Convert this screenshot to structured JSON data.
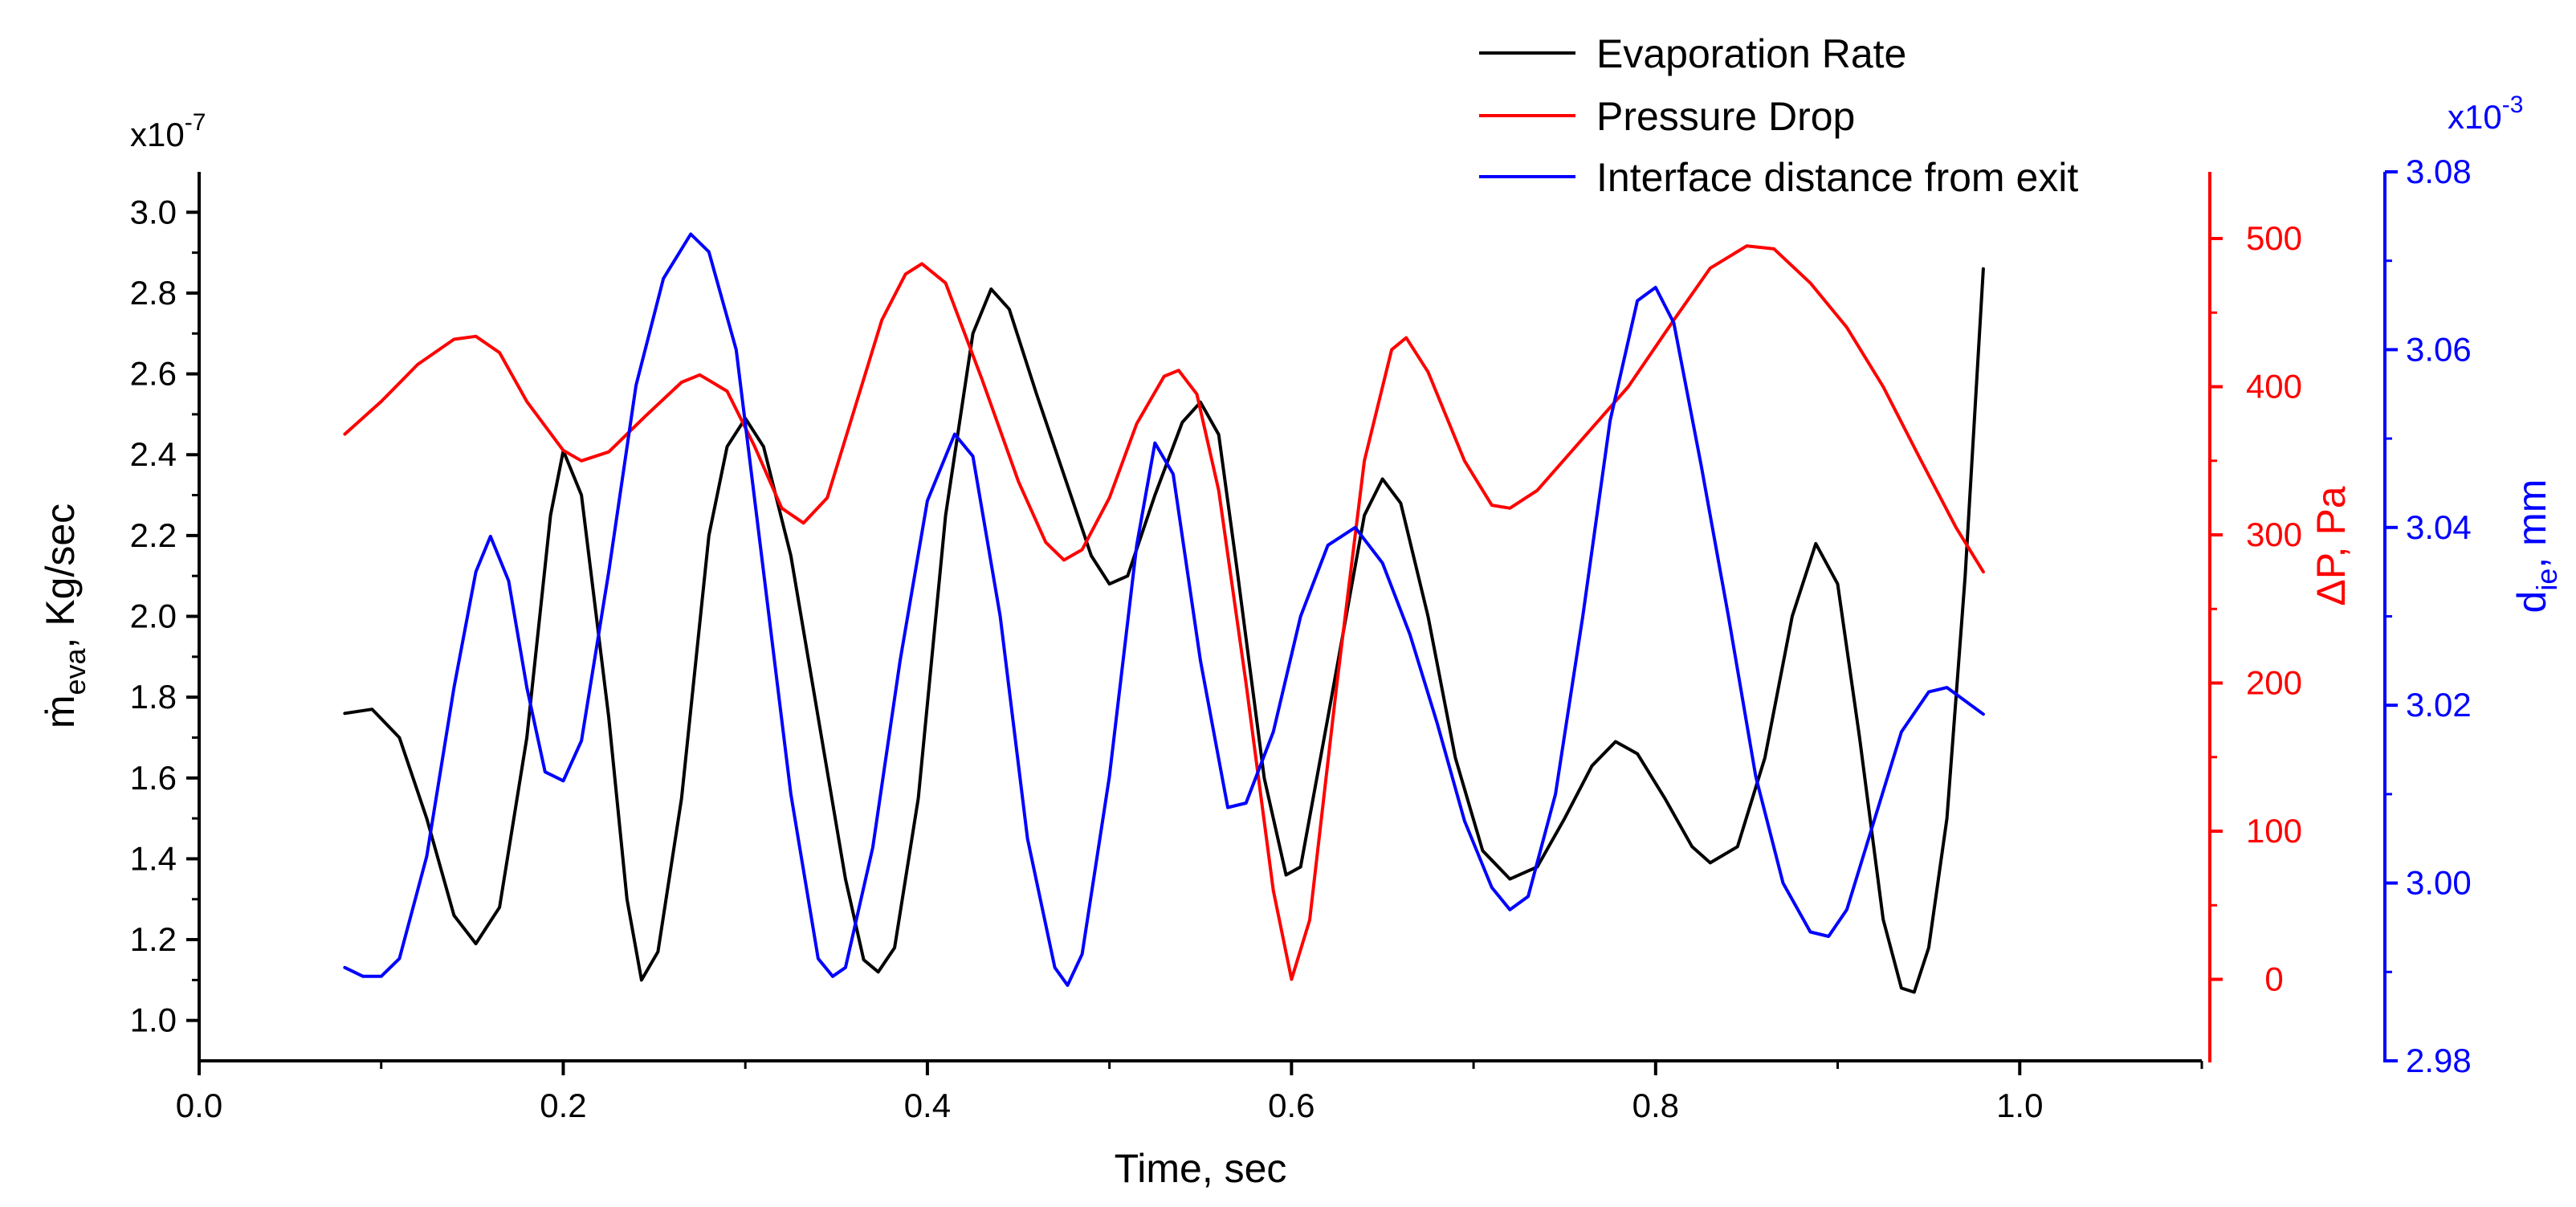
{
  "chart_data": {
    "type": "line",
    "title": "",
    "xlabel": "Time, sec",
    "xlim": [
      0.0,
      1.1
    ],
    "x_ticks": [
      "0.0",
      "0.2",
      "0.4",
      "0.6",
      "0.8",
      "1.0"
    ],
    "y_axes": {
      "left": {
        "label_main": "ṁ",
        "label_sub": "eva",
        "label_rest": ", Kg/sec",
        "multiplier_base": "x10",
        "multiplier_exp": "-7",
        "ylim": [
          0.9,
          3.1
        ],
        "ticks": [
          "1.0",
          "1.2",
          "1.4",
          "1.6",
          "1.8",
          "2.0",
          "2.2",
          "2.4",
          "2.6",
          "2.8",
          "3.0"
        ],
        "color": "#000000"
      },
      "right1": {
        "label": "ΔP, Pa",
        "ylim": [
          -55,
          545
        ],
        "ticks": [
          "0",
          "100",
          "200",
          "300",
          "400",
          "500"
        ],
        "color": "#ff0000"
      },
      "right2": {
        "label_main": "d",
        "label_sub": "ie",
        "label_rest": ", mm",
        "multiplier_base": "x10",
        "multiplier_exp": "-3",
        "ylim": [
          2.98,
          3.08
        ],
        "ticks": [
          "2.98",
          "3.00",
          "3.02",
          "3.04",
          "3.06",
          "3.08"
        ],
        "color": "#0000ff"
      }
    },
    "legend": [
      "Evaporation Rate",
      "Pressure Drop",
      "Interface distance from exit"
    ],
    "series": [
      {
        "name": "Evaporation Rate",
        "axis": "left",
        "color": "#000000",
        "points": [
          [
            0.08,
            1.76
          ],
          [
            0.095,
            1.77
          ],
          [
            0.11,
            1.7
          ],
          [
            0.125,
            1.5
          ],
          [
            0.14,
            1.26
          ],
          [
            0.152,
            1.19
          ],
          [
            0.165,
            1.28
          ],
          [
            0.18,
            1.7
          ],
          [
            0.193,
            2.25
          ],
          [
            0.2,
            2.41
          ],
          [
            0.21,
            2.3
          ],
          [
            0.225,
            1.75
          ],
          [
            0.235,
            1.3
          ],
          [
            0.243,
            1.1
          ],
          [
            0.252,
            1.17
          ],
          [
            0.265,
            1.55
          ],
          [
            0.28,
            2.2
          ],
          [
            0.29,
            2.42
          ],
          [
            0.3,
            2.49
          ],
          [
            0.31,
            2.42
          ],
          [
            0.325,
            2.15
          ],
          [
            0.34,
            1.75
          ],
          [
            0.355,
            1.35
          ],
          [
            0.365,
            1.15
          ],
          [
            0.373,
            1.12
          ],
          [
            0.382,
            1.18
          ],
          [
            0.395,
            1.55
          ],
          [
            0.41,
            2.25
          ],
          [
            0.425,
            2.7
          ],
          [
            0.435,
            2.81
          ],
          [
            0.445,
            2.76
          ],
          [
            0.46,
            2.55
          ],
          [
            0.475,
            2.35
          ],
          [
            0.49,
            2.15
          ],
          [
            0.5,
            2.08
          ],
          [
            0.51,
            2.1
          ],
          [
            0.525,
            2.3
          ],
          [
            0.54,
            2.48
          ],
          [
            0.55,
            2.53
          ],
          [
            0.56,
            2.45
          ],
          [
            0.57,
            2.12
          ],
          [
            0.585,
            1.6
          ],
          [
            0.597,
            1.36
          ],
          [
            0.605,
            1.38
          ],
          [
            0.62,
            1.75
          ],
          [
            0.64,
            2.25
          ],
          [
            0.65,
            2.34
          ],
          [
            0.66,
            2.28
          ],
          [
            0.675,
            2.0
          ],
          [
            0.69,
            1.65
          ],
          [
            0.705,
            1.42
          ],
          [
            0.72,
            1.35
          ],
          [
            0.735,
            1.38
          ],
          [
            0.75,
            1.5
          ],
          [
            0.765,
            1.63
          ],
          [
            0.778,
            1.69
          ],
          [
            0.79,
            1.66
          ],
          [
            0.805,
            1.55
          ],
          [
            0.82,
            1.43
          ],
          [
            0.83,
            1.39
          ],
          [
            0.845,
            1.43
          ],
          [
            0.86,
            1.65
          ],
          [
            0.875,
            2.0
          ],
          [
            0.888,
            2.18
          ],
          [
            0.9,
            2.08
          ],
          [
            0.912,
            1.7
          ],
          [
            0.925,
            1.25
          ],
          [
            0.935,
            1.08
          ],
          [
            0.942,
            1.07
          ],
          [
            0.95,
            1.18
          ],
          [
            0.96,
            1.5
          ],
          [
            0.97,
            2.1
          ],
          [
            0.98,
            2.86
          ]
        ]
      },
      {
        "name": "Pressure Drop",
        "axis": "right1",
        "color": "#ff0000",
        "points": [
          [
            0.08,
            368
          ],
          [
            0.1,
            390
          ],
          [
            0.12,
            415
          ],
          [
            0.14,
            432
          ],
          [
            0.152,
            434
          ],
          [
            0.165,
            423
          ],
          [
            0.18,
            390
          ],
          [
            0.2,
            357
          ],
          [
            0.21,
            350
          ],
          [
            0.225,
            356
          ],
          [
            0.245,
            380
          ],
          [
            0.265,
            403
          ],
          [
            0.275,
            408
          ],
          [
            0.29,
            397
          ],
          [
            0.305,
            360
          ],
          [
            0.32,
            318
          ],
          [
            0.332,
            308
          ],
          [
            0.345,
            325
          ],
          [
            0.36,
            385
          ],
          [
            0.375,
            445
          ],
          [
            0.388,
            476
          ],
          [
            0.397,
            483
          ],
          [
            0.41,
            470
          ],
          [
            0.43,
            405
          ],
          [
            0.45,
            336
          ],
          [
            0.465,
            295
          ],
          [
            0.475,
            283
          ],
          [
            0.485,
            290
          ],
          [
            0.5,
            325
          ],
          [
            0.515,
            375
          ],
          [
            0.53,
            407
          ],
          [
            0.538,
            411
          ],
          [
            0.548,
            395
          ],
          [
            0.56,
            330
          ],
          [
            0.575,
            200
          ],
          [
            0.59,
            60
          ],
          [
            0.6,
            0
          ],
          [
            0.61,
            40
          ],
          [
            0.625,
            200
          ],
          [
            0.64,
            350
          ],
          [
            0.655,
            425
          ],
          [
            0.663,
            433
          ],
          [
            0.675,
            410
          ],
          [
            0.695,
            350
          ],
          [
            0.71,
            320
          ],
          [
            0.72,
            318
          ],
          [
            0.735,
            330
          ],
          [
            0.76,
            365
          ],
          [
            0.785,
            400
          ],
          [
            0.81,
            445
          ],
          [
            0.83,
            480
          ],
          [
            0.85,
            495
          ],
          [
            0.865,
            493
          ],
          [
            0.885,
            470
          ],
          [
            0.905,
            440
          ],
          [
            0.925,
            400
          ],
          [
            0.945,
            352
          ],
          [
            0.965,
            305
          ],
          [
            0.98,
            275
          ]
        ]
      },
      {
        "name": "Interface distance from exit",
        "axis": "right2",
        "color": "#0000ff",
        "points": [
          [
            0.08,
            2.9905
          ],
          [
            0.09,
            2.9895
          ],
          [
            0.1,
            2.9895
          ],
          [
            0.11,
            2.9915
          ],
          [
            0.125,
            3.003
          ],
          [
            0.14,
            3.022
          ],
          [
            0.152,
            3.035
          ],
          [
            0.16,
            3.039
          ],
          [
            0.17,
            3.034
          ],
          [
            0.18,
            3.022
          ],
          [
            0.19,
            3.0125
          ],
          [
            0.2,
            3.0115
          ],
          [
            0.21,
            3.016
          ],
          [
            0.225,
            3.035
          ],
          [
            0.24,
            3.056
          ],
          [
            0.255,
            3.068
          ],
          [
            0.27,
            3.073
          ],
          [
            0.28,
            3.071
          ],
          [
            0.295,
            3.06
          ],
          [
            0.31,
            3.035
          ],
          [
            0.325,
            3.01
          ],
          [
            0.34,
            2.9915
          ],
          [
            0.348,
            2.9895
          ],
          [
            0.355,
            2.9905
          ],
          [
            0.37,
            3.004
          ],
          [
            0.385,
            3.025
          ],
          [
            0.4,
            3.043
          ],
          [
            0.415,
            3.0505
          ],
          [
            0.425,
            3.048
          ],
          [
            0.44,
            3.03
          ],
          [
            0.455,
            3.005
          ],
          [
            0.47,
            2.9905
          ],
          [
            0.477,
            2.9885
          ],
          [
            0.485,
            2.992
          ],
          [
            0.5,
            3.012
          ],
          [
            0.515,
            3.038
          ],
          [
            0.525,
            3.0495
          ],
          [
            0.535,
            3.046
          ],
          [
            0.55,
            3.025
          ],
          [
            0.565,
            3.0085
          ],
          [
            0.575,
            3.009
          ],
          [
            0.59,
            3.017
          ],
          [
            0.605,
            3.03
          ],
          [
            0.62,
            3.038
          ],
          [
            0.635,
            3.04
          ],
          [
            0.65,
            3.036
          ],
          [
            0.665,
            3.028
          ],
          [
            0.68,
            3.018
          ],
          [
            0.695,
            3.007
          ],
          [
            0.71,
            2.9995
          ],
          [
            0.72,
            2.997
          ],
          [
            0.73,
            2.9985
          ],
          [
            0.745,
            3.01
          ],
          [
            0.76,
            3.03
          ],
          [
            0.775,
            3.052
          ],
          [
            0.79,
            3.0655
          ],
          [
            0.8,
            3.067
          ],
          [
            0.81,
            3.063
          ],
          [
            0.825,
            3.047
          ],
          [
            0.84,
            3.03
          ],
          [
            0.855,
            3.012
          ],
          [
            0.87,
            3.0
          ],
          [
            0.885,
            2.9945
          ],
          [
            0.895,
            2.994
          ],
          [
            0.905,
            2.997
          ],
          [
            0.92,
            3.007
          ],
          [
            0.935,
            3.017
          ],
          [
            0.95,
            3.0215
          ],
          [
            0.96,
            3.022
          ],
          [
            0.97,
            3.0205
          ],
          [
            0.98,
            3.019
          ]
        ]
      }
    ]
  }
}
